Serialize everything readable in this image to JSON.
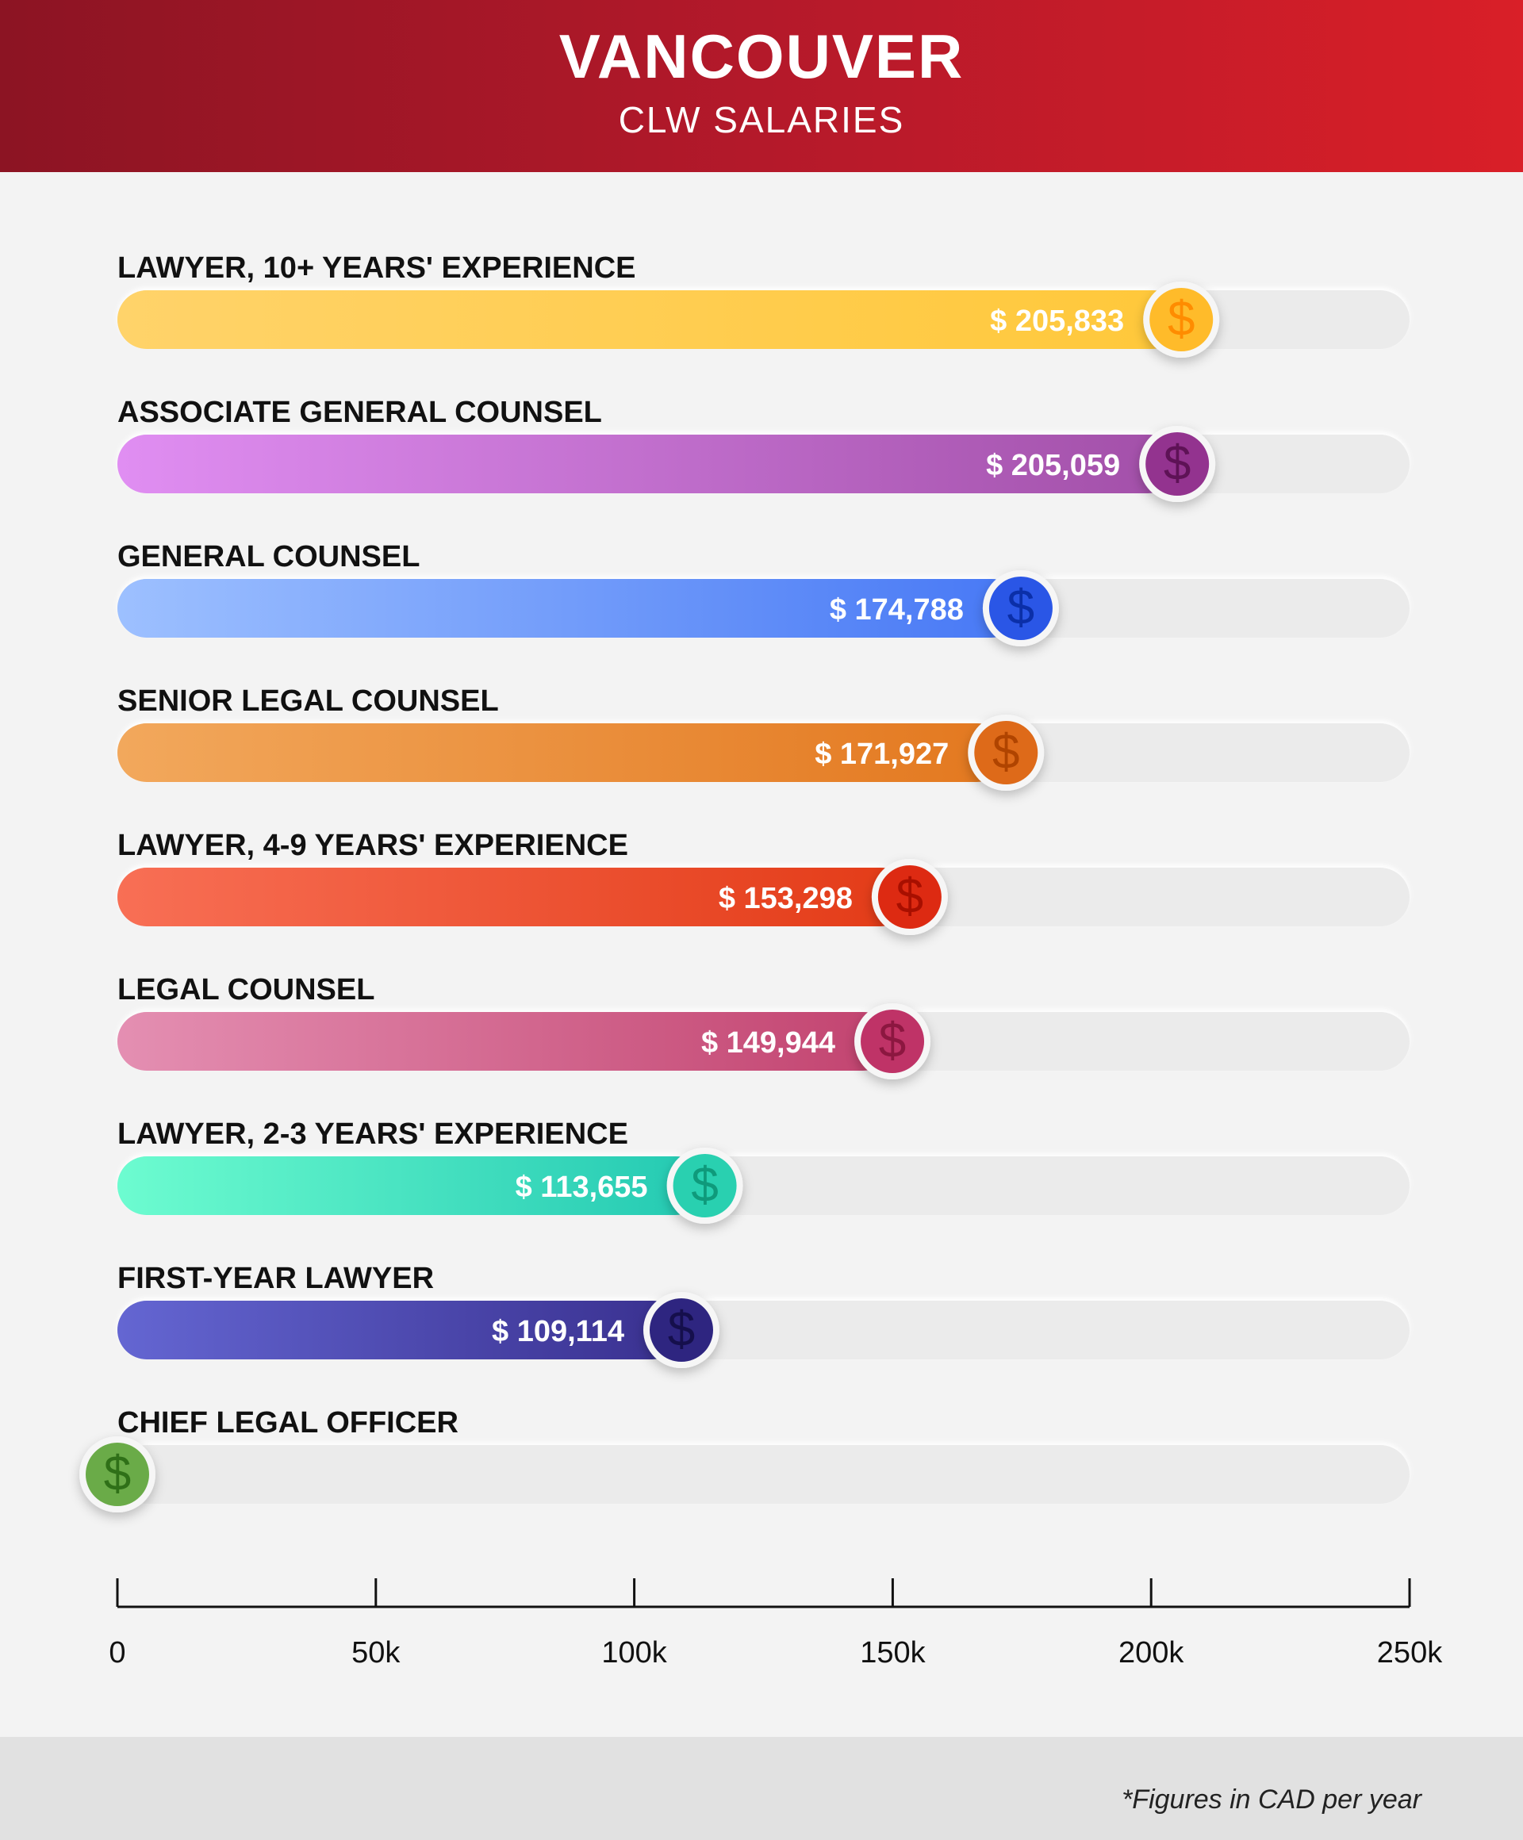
{
  "header": {
    "title": "VANCOUVER",
    "subtitle": "CLW SALARIES"
  },
  "footer": {
    "note": "*Figures in CAD per year"
  },
  "coin_symbol": "$",
  "chart_data": {
    "type": "bar",
    "orientation": "horizontal",
    "categories": [
      "LAWYER, 10+ YEARS' EXPERIENCE",
      "ASSOCIATE GENERAL COUNSEL",
      "GENERAL COUNSEL",
      "SENIOR LEGAL COUNSEL",
      "LAWYER, 4-9 YEARS' EXPERIENCE",
      "LEGAL COUNSEL",
      "LAWYER, 2-3 YEARS' EXPERIENCE",
      "FIRST-YEAR LAWYER",
      "CHIEF LEGAL OFFICER"
    ],
    "values": [
      205833,
      205059,
      174788,
      171927,
      153298,
      149944,
      113655,
      109114,
      0
    ],
    "value_labels": [
      "$ 205,833",
      "$ 205,059",
      "$ 174,788",
      "$ 171,927",
      "$ 153,298",
      "$ 149,944",
      "$ 113,655",
      "$ 109,114",
      ""
    ],
    "colors": [
      [
        "#ffd36a",
        "#ffc83a"
      ],
      [
        "#e08ef2",
        "#a24fa8"
      ],
      [
        "#9dc0ff",
        "#4778f5"
      ],
      [
        "#f2a85c",
        "#e3781f"
      ],
      [
        "#f86f55",
        "#e33b17"
      ],
      [
        "#e48fb2",
        "#c2436f"
      ],
      [
        "#6dfcd0",
        "#23c9b2"
      ],
      [
        "#6466d2",
        "#39308f"
      ],
      [
        "#9ccf76",
        "#5f9e3d"
      ]
    ],
    "coin_colors": [
      "#ffbb2a",
      "#93338f",
      "#2a56e6",
      "#de6a19",
      "#dd2a12",
      "#bf3367",
      "#29d0b0",
      "#2e2580",
      "#6aab48"
    ],
    "coin_symbol_colors": [
      "#ff8c00",
      "#5e1256",
      "#0b2fa8",
      "#b04400",
      "#a80f00",
      "#8c1740",
      "#0f9a7b",
      "#150f4c",
      "#2f7018"
    ],
    "x_ticks": [
      0,
      50000,
      100000,
      150000,
      200000,
      250000
    ],
    "x_tick_labels": [
      "0",
      "50k",
      "100k",
      "150k",
      "200k",
      "250k"
    ],
    "xlim": [
      0,
      250000
    ],
    "xlabel": "",
    "ylabel": ""
  }
}
